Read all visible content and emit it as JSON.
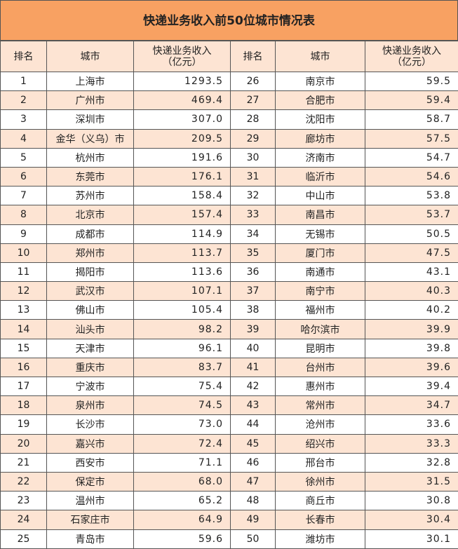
{
  "title": "快递业务收入前50位城市情况表",
  "headers": [
    "排名",
    "城市",
    "快递业务收入\n（亿元）",
    "排名",
    "城市",
    "快递业务收入\n（亿元）"
  ],
  "rows": [
    [
      "1",
      "上海市",
      "1293.5",
      "26",
      "南京市",
      "59.5"
    ],
    [
      "2",
      "广州市",
      "469.4",
      "27",
      "合肥市",
      "59.4"
    ],
    [
      "3",
      "深圳市",
      "307.0",
      "28",
      "沈阳市",
      "58.7"
    ],
    [
      "4",
      "金华（义乌）市",
      "209.5",
      "29",
      "廊坊市",
      "57.5"
    ],
    [
      "5",
      "杭州市",
      "191.6",
      "30",
      "济南市",
      "54.7"
    ],
    [
      "6",
      "东莞市",
      "176.1",
      "31",
      "临沂市",
      "54.6"
    ],
    [
      "7",
      "苏州市",
      "158.4",
      "32",
      "中山市",
      "53.8"
    ],
    [
      "8",
      "北京市",
      "157.4",
      "33",
      "南昌市",
      "53.7"
    ],
    [
      "9",
      "成都市",
      "114.9",
      "34",
      "无锡市",
      "50.5"
    ],
    [
      "10",
      "郑州市",
      "113.7",
      "35",
      "厦门市",
      "47.5"
    ],
    [
      "11",
      "揭阳市",
      "113.6",
      "36",
      "南通市",
      "43.1"
    ],
    [
      "12",
      "武汉市",
      "107.1",
      "37",
      "南宁市",
      "40.3"
    ],
    [
      "13",
      "佛山市",
      "105.4",
      "38",
      "福州市",
      "40.2"
    ],
    [
      "14",
      "汕头市",
      "98.2",
      "39",
      "哈尔滨市",
      "39.9"
    ],
    [
      "15",
      "天津市",
      "96.1",
      "40",
      "昆明市",
      "39.8"
    ],
    [
      "16",
      "重庆市",
      "83.7",
      "41",
      "台州市",
      "39.6"
    ],
    [
      "17",
      "宁波市",
      "75.4",
      "42",
      "惠州市",
      "39.4"
    ],
    [
      "18",
      "泉州市",
      "74.5",
      "43",
      "常州市",
      "34.7"
    ],
    [
      "19",
      "长沙市",
      "73.0",
      "44",
      "沧州市",
      "33.6"
    ],
    [
      "20",
      "嘉兴市",
      "72.4",
      "45",
      "绍兴市",
      "33.3"
    ],
    [
      "21",
      "西安市",
      "71.1",
      "46",
      "邢台市",
      "32.8"
    ],
    [
      "22",
      "保定市",
      "68.0",
      "47",
      "徐州市",
      "31.5"
    ],
    [
      "23",
      "温州市",
      "65.2",
      "48",
      "商丘市",
      "30.8"
    ],
    [
      "24",
      "石家庄市",
      "64.9",
      "49",
      "长春市",
      "30.4"
    ],
    [
      "25",
      "青岛市",
      "59.6",
      "50",
      "潍坊市",
      "30.1"
    ]
  ]
}
